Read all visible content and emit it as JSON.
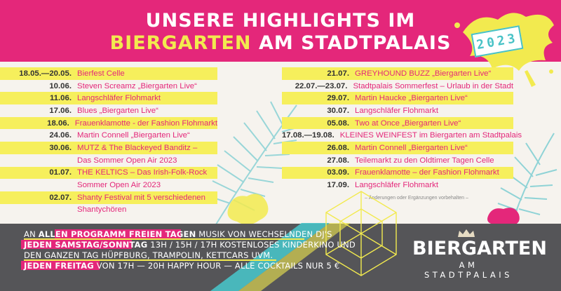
{
  "header": {
    "title_line1": "UNSERE HIGHLIGHTS IM",
    "title_line2_highlight": "BIERGARTEN",
    "title_line2_rest": "AM STADTPALAIS",
    "year": "2023"
  },
  "events_left": [
    {
      "date": "18.05.—20.05.",
      "title": "Bierfest Celle"
    },
    {
      "date": "10.06.",
      "title": "Steven Screamz „Biergarten Live“"
    },
    {
      "date": "11.06.",
      "title": "Langschläfer Flohmarkt"
    },
    {
      "date": "17.06.",
      "title": "Blues „Biergarten Live“"
    },
    {
      "date": "18.06.",
      "title": "Frauenklamotte - der Fashion Flohmarkt"
    },
    {
      "date": "24.06.",
      "title": "Martin Connell „Biergarten Live“"
    },
    {
      "date": "30.06.",
      "title": "MUTZ & The Blackeyed Banditz –"
    },
    {
      "date": "",
      "title": "Das Sommer Open Air 2023"
    },
    {
      "date": "01.07.",
      "title": "THE KELTICS – Das Irish-Folk-Rock"
    },
    {
      "date": "",
      "title": "Sommer Open Air 2023"
    },
    {
      "date": "02.07.",
      "title": "Shanty Festival mit 5 verschiedenen"
    },
    {
      "date": "",
      "title": "Shantychören"
    }
  ],
  "events_right": [
    {
      "date": "21.07.",
      "title": "GREYHOUND BUZZ „Biergarten Live“"
    },
    {
      "date": "22.07.—23.07.",
      "title": "Stadtpalais Sommerfest – Urlaub in der Stadt"
    },
    {
      "date": "29.07.",
      "title": "Martin Haucke „Biergarten Live“"
    },
    {
      "date": "30.07.",
      "title": "Langschläfer Flohmarkt"
    },
    {
      "date": "05.08.",
      "title": "Two at Once „Biergarten Live“"
    },
    {
      "date": "17.08.—19.08.",
      "title": "KLEINES WEINFEST im Biergarten am Stadtpalais"
    },
    {
      "date": "26.08.",
      "title": "Martin Connell „Biergarten Live“"
    },
    {
      "date": "27.08.",
      "title": "Teilemarkt zu den Oldtimer Tagen Celle"
    },
    {
      "date": "03.09.",
      "title": "Frauenklamotte – der Fashion Flohmarkt"
    },
    {
      "date": "17.09.",
      "title": "Langschläfer Flohmarkt"
    }
  ],
  "note": "– Änderungen oder Ergänzungen vorbehalten –",
  "footer": {
    "line1_a": "AN ",
    "line1_b": "ALLEN PROGRAMM FREIEN TAGEN",
    "line1_c": " MUSIK VON WECHSELNDEN DJ'S",
    "line2_a": "JEDEN SAMSTAG/SONNTAG",
    "line2_b": " 13H / 15H / 17H KOSTENLOSES KINDERKINO UND",
    "line3": "DEN GANZEN TAG HÜPFBURG, TRAMPOLIN, KETTCARS UVM.",
    "line4_a": "JEDEN FREITAG",
    "line4_b": " VON 17H — 20H HAPPY HOUR — ALLE COCKTAILS NUR 5 €"
  },
  "logo": {
    "main": "BIERGARTEN",
    "sub": "AM STADTPALAIS"
  },
  "colors": {
    "pink": "#e4277a",
    "yellow": "#f6ef5c",
    "teal": "#48c2c6",
    "gray": "#555558"
  }
}
